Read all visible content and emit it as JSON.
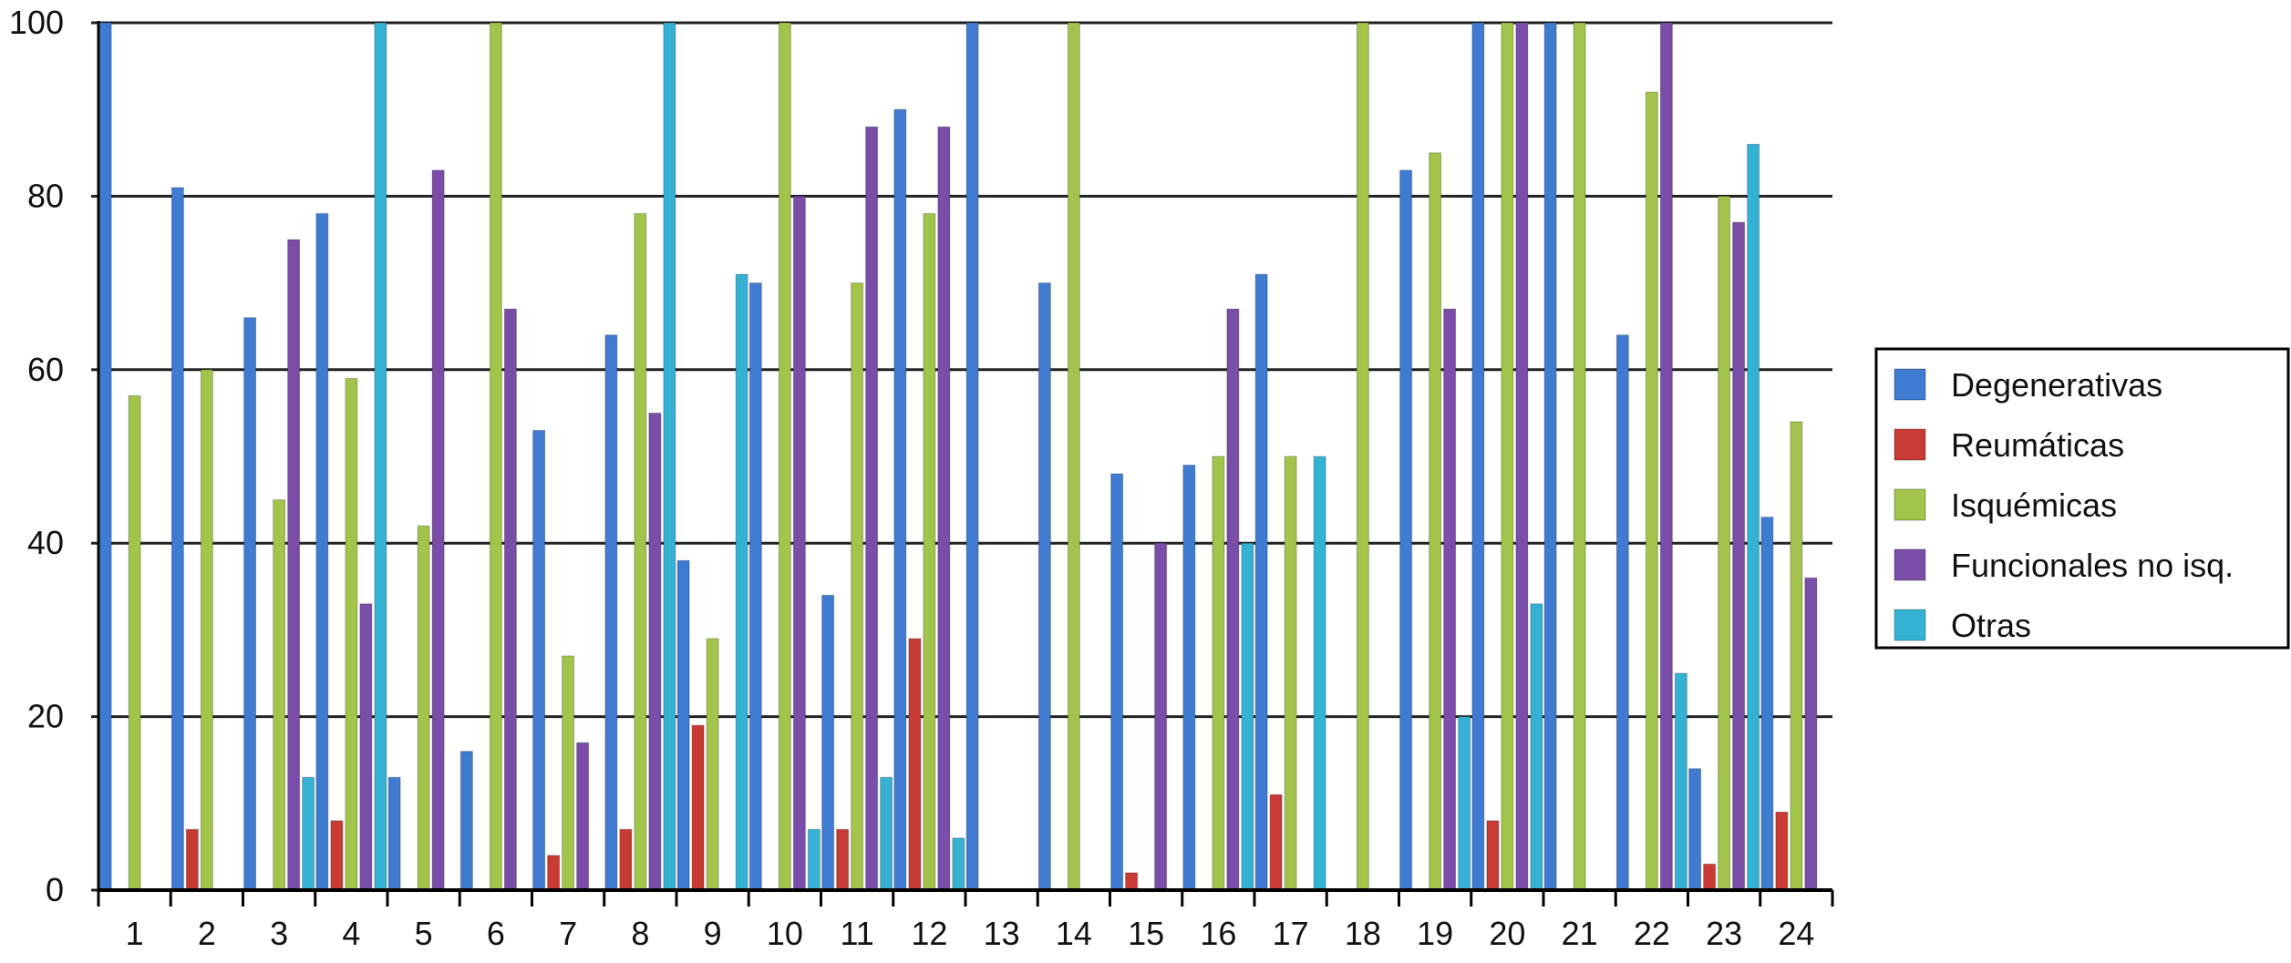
{
  "chart_data": {
    "type": "bar",
    "title": "",
    "xlabel": "",
    "ylabel": "",
    "ylim": [
      0,
      100
    ],
    "yticks": [
      0,
      20,
      40,
      60,
      80,
      100
    ],
    "grid": "horizontal",
    "legend_position": "right",
    "categories": [
      "1",
      "2",
      "3",
      "4",
      "5",
      "6",
      "7",
      "8",
      "9",
      "10",
      "11",
      "12",
      "13",
      "14",
      "15",
      "16",
      "17",
      "18",
      "19",
      "20",
      "21",
      "22",
      "23",
      "24"
    ],
    "series": [
      {
        "name": "Degenerativas",
        "color": "#3f7bd1",
        "values": [
          100,
          81,
          66,
          78,
          13,
          16,
          53,
          64,
          38,
          70,
          34,
          90,
          100,
          70,
          48,
          49,
          71,
          0,
          83,
          100,
          100,
          64,
          14,
          43
        ]
      },
      {
        "name": "Reumáticas",
        "color": "#c83a33",
        "values": [
          0,
          7,
          0,
          8,
          0,
          0,
          4,
          7,
          19,
          0,
          7,
          29,
          0,
          0,
          2,
          0,
          11,
          0,
          0,
          8,
          0,
          0,
          3,
          9
        ]
      },
      {
        "name": "Isquémicas",
        "color": "#a2c44a",
        "values": [
          57,
          60,
          45,
          59,
          42,
          100,
          27,
          78,
          29,
          100,
          70,
          78,
          0,
          100,
          0,
          50,
          50,
          100,
          85,
          100,
          100,
          92,
          80,
          54
        ]
      },
      {
        "name": "Funcionales no isq.",
        "color": "#7a4ea8",
        "values": [
          0,
          0,
          75,
          33,
          83,
          67,
          17,
          55,
          0,
          80,
          88,
          88,
          0,
          0,
          40,
          67,
          0,
          0,
          67,
          100,
          0,
          100,
          77,
          36
        ]
      },
      {
        "name": "Otras",
        "color": "#35b2d3",
        "values": [
          0,
          0,
          13,
          100,
          0,
          0,
          0,
          100,
          71,
          7,
          13,
          6,
          0,
          0,
          0,
          40,
          50,
          0,
          20,
          33,
          0,
          25,
          86,
          0
        ]
      }
    ]
  }
}
